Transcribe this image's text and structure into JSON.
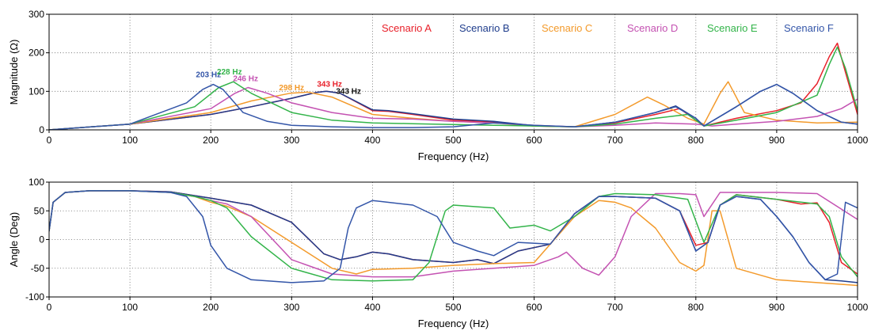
{
  "chart_data": [
    {
      "type": "line",
      "xlabel": "Frequency (Hz)",
      "ylabel": "Magnitude (Ω)",
      "xlim": [
        0,
        1000
      ],
      "ylim": [
        0,
        300
      ],
      "xticks": [
        "0",
        "100",
        "200",
        "300",
        "400",
        "500",
        "600",
        "700",
        "800",
        "900",
        "1000"
      ],
      "yticks": [
        "0",
        "100",
        "200",
        "300"
      ],
      "grid": true,
      "legend_position": "top-right",
      "series": [
        {
          "name": "Scenario A",
          "color": "#e8202a",
          "x": [
            0,
            100,
            200,
            250,
            300,
            330,
            343,
            360,
            400,
            420,
            450,
            500,
            550,
            600,
            650,
            700,
            750,
            780,
            800,
            810,
            850,
            900,
            930,
            950,
            965,
            975,
            985,
            1000
          ],
          "y": [
            0,
            15,
            40,
            60,
            82,
            97,
            100,
            95,
            50,
            48,
            40,
            25,
            20,
            10,
            8,
            18,
            40,
            55,
            25,
            10,
            30,
            50,
            70,
            120,
            190,
            225,
            150,
            40
          ]
        },
        {
          "name": "Scenario B",
          "color": "#1f3d8c",
          "x": [
            0,
            100,
            200,
            250,
            300,
            330,
            343,
            360,
            400,
            420,
            450,
            500,
            550,
            600,
            650,
            700,
            750,
            775,
            800,
            810,
            850,
            880,
            900,
            920,
            950,
            980,
            1000
          ],
          "y": [
            0,
            15,
            40,
            60,
            82,
            97,
            100,
            95,
            52,
            50,
            42,
            28,
            22,
            11,
            8,
            20,
            45,
            62,
            30,
            10,
            60,
            100,
            118,
            95,
            50,
            20,
            15
          ]
        },
        {
          "name": "Scenario C",
          "color": "#f39a2b",
          "x": [
            0,
            100,
            200,
            250,
            298,
            320,
            350,
            400,
            450,
            500,
            550,
            600,
            650,
            700,
            740,
            760,
            790,
            810,
            830,
            840,
            860,
            900,
            950,
            1000
          ],
          "y": [
            0,
            15,
            45,
            75,
            95,
            98,
            85,
            40,
            30,
            22,
            18,
            10,
            8,
            40,
            85,
            65,
            30,
            15,
            95,
            125,
            45,
            25,
            18,
            20
          ]
        },
        {
          "name": "Scenario D",
          "color": "#c452b2",
          "x": [
            0,
            100,
            200,
            230,
            246,
            270,
            300,
            350,
            400,
            450,
            500,
            550,
            600,
            650,
            700,
            750,
            800,
            820,
            850,
            900,
            950,
            980,
            1000
          ],
          "y": [
            0,
            15,
            55,
            95,
            110,
            95,
            70,
            45,
            30,
            28,
            22,
            18,
            12,
            8,
            12,
            18,
            15,
            10,
            15,
            22,
            35,
            55,
            80
          ]
        },
        {
          "name": "Scenario E",
          "color": "#33b44a",
          "x": [
            0,
            100,
            180,
            210,
            228,
            250,
            300,
            350,
            400,
            450,
            500,
            550,
            600,
            650,
            700,
            750,
            790,
            810,
            850,
            900,
            950,
            965,
            975,
            985,
            1000
          ],
          "y": [
            0,
            15,
            60,
            110,
            125,
            95,
            45,
            25,
            18,
            16,
            14,
            12,
            10,
            8,
            15,
            30,
            40,
            10,
            25,
            45,
            90,
            170,
            215,
            160,
            50
          ]
        },
        {
          "name": "Scenario F",
          "color": "#3355a8",
          "x": [
            0,
            100,
            170,
            190,
            203,
            215,
            240,
            270,
            300,
            350,
            400,
            450,
            500,
            550,
            600,
            650,
            700,
            750,
            775,
            800,
            810,
            850,
            880,
            900,
            920,
            950,
            980,
            1000
          ],
          "y": [
            0,
            15,
            70,
            105,
            118,
            105,
            45,
            22,
            12,
            8,
            6,
            6,
            8,
            18,
            12,
            8,
            20,
            45,
            60,
            30,
            10,
            60,
            100,
            118,
            95,
            50,
            20,
            15
          ]
        }
      ],
      "annotations": [
        {
          "text": "203 Hz",
          "x": 203,
          "y": 118,
          "color": "#3355a8"
        },
        {
          "text": "228 Hz",
          "x": 228,
          "y": 125,
          "color": "#33b44a"
        },
        {
          "text": "246 Hz",
          "x": 246,
          "y": 110,
          "color": "#c452b2"
        },
        {
          "text": "298 Hz",
          "x": 298,
          "y": 95,
          "color": "#f39a2b"
        },
        {
          "text": "343 Hz",
          "x": 343,
          "y": 100,
          "color": "#e8202a"
        },
        {
          "text": "343 Hz",
          "x": 343,
          "y": 100,
          "color": "#111111"
        }
      ]
    },
    {
      "type": "line",
      "xlabel": "Frequency (Hz)",
      "ylabel": "Angle (Deg)",
      "xlim": [
        0,
        1000
      ],
      "ylim": [
        -100,
        100
      ],
      "xticks": [
        "0",
        "100",
        "200",
        "300",
        "400",
        "500",
        "600",
        "700",
        "800",
        "900",
        "1000"
      ],
      "yticks": [
        "-100",
        "-50",
        "0",
        "50",
        "100"
      ],
      "grid": true,
      "series": [
        {
          "name": "Scenario A",
          "color": "#e8202a",
          "x": [
            0,
            5,
            20,
            50,
            100,
            150,
            200,
            250,
            300,
            340,
            360,
            380,
            400,
            420,
            450,
            500,
            530,
            550,
            580,
            620,
            650,
            680,
            700,
            750,
            780,
            800,
            815,
            830,
            850,
            900,
            930,
            950,
            965,
            980,
            1000
          ],
          "y": [
            15,
            65,
            82,
            85,
            85,
            83,
            72,
            60,
            30,
            -25,
            -35,
            -30,
            -22,
            -25,
            -35,
            -40,
            -35,
            -42,
            -20,
            -8,
            45,
            75,
            75,
            72,
            50,
            -10,
            -5,
            60,
            78,
            70,
            62,
            64,
            30,
            -40,
            -60
          ]
        },
        {
          "name": "Scenario B",
          "color": "#1f3d8c",
          "x": [
            0,
            5,
            20,
            50,
            100,
            150,
            200,
            250,
            300,
            340,
            360,
            380,
            400,
            420,
            450,
            500,
            530,
            550,
            580,
            620,
            650,
            680,
            700,
            750,
            780,
            800,
            815,
            830,
            850,
            880,
            900,
            920,
            940,
            960,
            980,
            1000
          ],
          "y": [
            15,
            65,
            82,
            85,
            85,
            83,
            72,
            60,
            30,
            -25,
            -35,
            -30,
            -22,
            -25,
            -35,
            -40,
            -35,
            -42,
            -20,
            -8,
            45,
            75,
            75,
            72,
            50,
            -20,
            -5,
            60,
            75,
            70,
            40,
            5,
            -40,
            -70,
            -72,
            -75
          ]
        },
        {
          "name": "Scenario C",
          "color": "#f39a2b",
          "x": [
            0,
            5,
            20,
            50,
            100,
            150,
            180,
            200,
            220,
            250,
            300,
            350,
            380,
            400,
            450,
            500,
            550,
            600,
            650,
            680,
            700,
            720,
            750,
            780,
            800,
            810,
            820,
            830,
            850,
            900,
            950,
            1000
          ],
          "y": [
            15,
            65,
            82,
            85,
            85,
            82,
            75,
            65,
            58,
            40,
            -5,
            -50,
            -60,
            -52,
            -50,
            -45,
            -42,
            -40,
            40,
            68,
            65,
            55,
            20,
            -40,
            -55,
            -45,
            50,
            50,
            -50,
            -70,
            -75,
            -80
          ]
        },
        {
          "name": "Scenario D",
          "color": "#c452b2",
          "x": [
            0,
            5,
            20,
            50,
            100,
            150,
            180,
            200,
            220,
            250,
            300,
            350,
            400,
            450,
            500,
            550,
            600,
            630,
            640,
            660,
            680,
            700,
            720,
            750,
            780,
            800,
            810,
            830,
            900,
            950,
            1000
          ],
          "y": [
            15,
            65,
            82,
            85,
            85,
            82,
            75,
            68,
            62,
            40,
            -35,
            -60,
            -65,
            -65,
            -55,
            -50,
            -45,
            -30,
            -22,
            -50,
            -62,
            -30,
            40,
            80,
            80,
            78,
            40,
            82,
            82,
            80,
            35
          ]
        },
        {
          "name": "Scenario E",
          "color": "#33b44a",
          "x": [
            0,
            5,
            20,
            50,
            100,
            150,
            180,
            200,
            220,
            250,
            300,
            350,
            400,
            450,
            470,
            490,
            500,
            550,
            570,
            600,
            620,
            650,
            680,
            700,
            750,
            790,
            810,
            830,
            850,
            900,
            950,
            965,
            980,
            1000
          ],
          "y": [
            15,
            65,
            82,
            85,
            85,
            82,
            75,
            68,
            55,
            5,
            -50,
            -70,
            -72,
            -70,
            -40,
            50,
            60,
            55,
            20,
            25,
            15,
            40,
            75,
            80,
            78,
            70,
            -5,
            60,
            78,
            70,
            62,
            40,
            -30,
            -65
          ]
        },
        {
          "name": "Scenario F",
          "color": "#3355a8",
          "x": [
            0,
            5,
            20,
            50,
            100,
            150,
            170,
            190,
            200,
            220,
            250,
            300,
            340,
            360,
            370,
            380,
            400,
            450,
            480,
            500,
            530,
            550,
            560,
            580,
            620,
            650,
            680,
            700,
            750,
            780,
            800,
            815,
            830,
            850,
            880,
            900,
            920,
            940,
            960,
            975,
            985,
            1000
          ],
          "y": [
            15,
            65,
            82,
            85,
            85,
            82,
            75,
            40,
            -10,
            -50,
            -70,
            -75,
            -72,
            -50,
            20,
            55,
            68,
            60,
            40,
            -5,
            -20,
            -28,
            -20,
            -5,
            -8,
            45,
            75,
            75,
            72,
            50,
            -20,
            -5,
            60,
            75,
            70,
            40,
            5,
            -40,
            -70,
            -60,
            65,
            55
          ]
        }
      ]
    }
  ],
  "legend": {
    "items": [
      "Scenario A",
      "Scenario B",
      "Scenario C",
      "Scenario D",
      "Scenario E",
      "Scenario F"
    ],
    "colors": [
      "#e8202a",
      "#1f3d8c",
      "#f39a2b",
      "#c452b2",
      "#33b44a",
      "#3355a8"
    ]
  }
}
